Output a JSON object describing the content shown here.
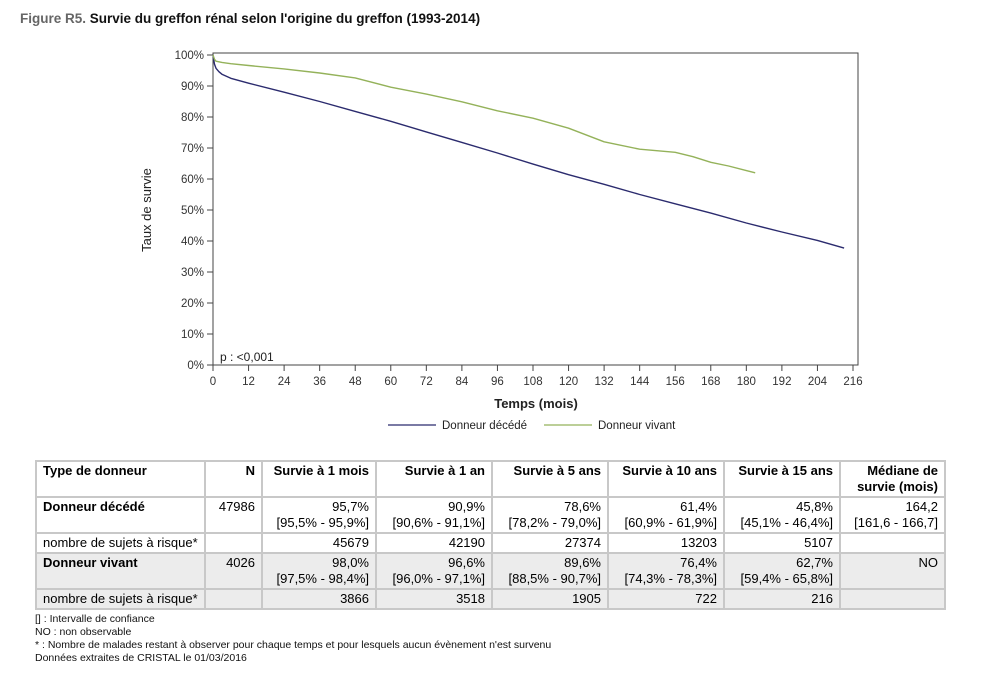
{
  "figure": {
    "label": "Figure R5.",
    "title": "Survie du greffon rénal selon l'origine du greffon (1993-2014)"
  },
  "chart_data": {
    "type": "line",
    "title": "Survie du greffon rénal selon l'origine du greffon (1993-2014)",
    "xlabel": "Temps (mois)",
    "ylabel": "Taux de survie",
    "xlim": [
      0,
      216
    ],
    "ylim": [
      0,
      100
    ],
    "xticks": [
      0,
      12,
      24,
      36,
      48,
      60,
      72,
      84,
      96,
      108,
      120,
      132,
      144,
      156,
      168,
      180,
      192,
      204,
      216
    ],
    "yticks": [
      "0%",
      "10%",
      "20%",
      "30%",
      "40%",
      "50%",
      "60%",
      "70%",
      "80%",
      "90%",
      "100%"
    ],
    "yticks_values": [
      0,
      10,
      20,
      30,
      40,
      50,
      60,
      70,
      80,
      90,
      100
    ],
    "annotation": "p : <0,001",
    "legend_position": "bottom",
    "grid": false,
    "series": [
      {
        "name": "Donneur décédé",
        "color": "#2b2b6e",
        "x": [
          0,
          0.5,
          1,
          2,
          3,
          6,
          12,
          24,
          36,
          48,
          60,
          72,
          84,
          96,
          108,
          120,
          132,
          144,
          156,
          168,
          180,
          192,
          204,
          213
        ],
        "y": [
          100,
          97.0,
          95.7,
          94.6,
          93.8,
          92.5,
          90.9,
          88.0,
          85.0,
          81.8,
          78.6,
          75.2,
          71.8,
          68.4,
          64.8,
          61.4,
          58.3,
          55.0,
          52.0,
          49.0,
          45.8,
          42.9,
          40.2,
          37.7
        ]
      },
      {
        "name": "Donneur vivant",
        "color": "#94b25a",
        "x": [
          0,
          0.5,
          1,
          3,
          6,
          12,
          24,
          36,
          48,
          60,
          72,
          84,
          96,
          108,
          120,
          132,
          144,
          156,
          162,
          168,
          174,
          180,
          183
        ],
        "y": [
          100,
          98.6,
          98.0,
          97.6,
          97.2,
          96.6,
          95.5,
          94.2,
          92.6,
          89.6,
          87.4,
          84.9,
          82.0,
          79.6,
          76.4,
          72.0,
          69.6,
          68.6,
          67.2,
          65.4,
          64.2,
          62.7,
          62.0
        ]
      }
    ]
  },
  "table": {
    "headers": [
      "Type de donneur",
      "N",
      "Survie à 1 mois",
      "Survie à 1 an",
      "Survie à 5 ans",
      "Survie à 10 ans",
      "Survie à 15 ans",
      "Médiane de survie (mois)"
    ],
    "rows": [
      {
        "type": "Donneur décédé",
        "n": "47986",
        "values": [
          "95,7%",
          "90,9%",
          "78,6%",
          "61,4%",
          "45,8%",
          "164,2"
        ],
        "ci": [
          "[95,5% - 95,9%]",
          "[90,6% - 91,1%]",
          "[78,2% - 79,0%]",
          "[60,9% - 61,9%]",
          "[45,1% - 46,4%]",
          "[161,6 - 166,7]"
        ],
        "risk_label": "nombre de sujets à risque*",
        "risk": [
          "45679",
          "42190",
          "27374",
          "13203",
          "5107",
          ""
        ]
      },
      {
        "type": "Donneur vivant",
        "n": "4026",
        "values": [
          "98,0%",
          "96,6%",
          "89,6%",
          "76,4%",
          "62,7%",
          "NO"
        ],
        "ci": [
          "[97,5% - 98,4%]",
          "[96,0% - 97,1%]",
          "[88,5% - 90,7%]",
          "[74,3% - 78,3%]",
          "[59,4% - 65,8%]",
          ""
        ],
        "risk_label": "nombre de sujets à risque*",
        "risk": [
          "3866",
          "3518",
          "1905",
          "722",
          "216",
          ""
        ]
      }
    ]
  },
  "notes": [
    "[] : Intervalle de confiance",
    "NO : non observable",
    "* : Nombre de malades restant à observer pour chaque temps et pour lesquels aucun évènement n'est survenu",
    "Données extraites de CRISTAL le 01/03/2016"
  ]
}
